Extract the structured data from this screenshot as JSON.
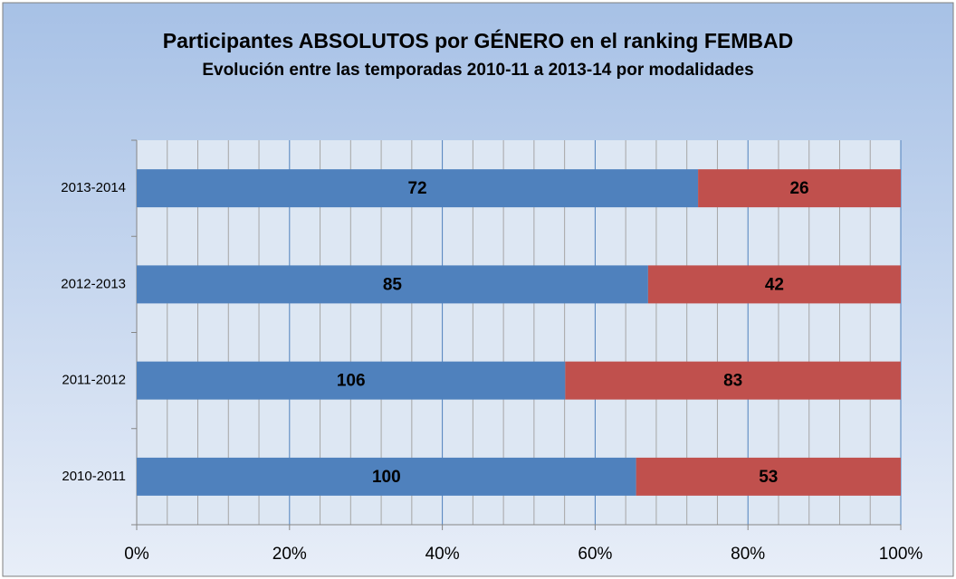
{
  "chart_data": {
    "type": "bar",
    "orientation": "horizontal",
    "stacked": "percent",
    "title": "Participantes ABSOLUTOS por GÉNERO en el ranking FEMBAD",
    "subtitle": "Evolución entre las temporadas 2010-11 a 2013-14 por modalidades",
    "categories": [
      "2010-2011",
      "2011-2012",
      "2012-2013",
      "2013-2014"
    ],
    "series": [
      {
        "color": "#4f81bd",
        "values": [
          100,
          106,
          85,
          72
        ]
      },
      {
        "color": "#c0504d",
        "values": [
          53,
          83,
          42,
          26
        ]
      }
    ],
    "xlim": [
      0,
      100
    ],
    "xticks": [
      {
        "value": 0,
        "label": "0%"
      },
      {
        "value": 20,
        "label": "20%"
      },
      {
        "value": 40,
        "label": "40%"
      },
      {
        "value": 60,
        "label": "60%"
      },
      {
        "value": 80,
        "label": "80%"
      },
      {
        "value": 100,
        "label": "100%"
      }
    ],
    "xminorticks": [
      4,
      8,
      12,
      16,
      24,
      28,
      32,
      36,
      44,
      48,
      52,
      56,
      64,
      68,
      72,
      76,
      84,
      88,
      92,
      96
    ],
    "grid": true
  }
}
